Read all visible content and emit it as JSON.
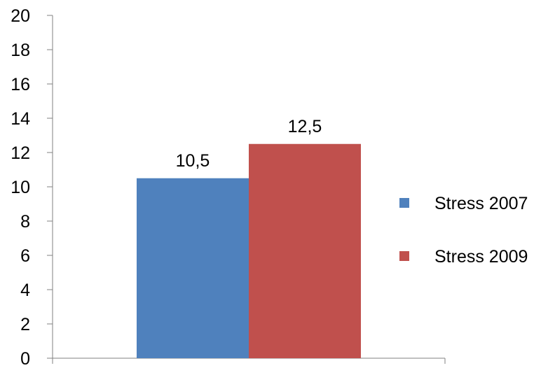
{
  "chart_data": {
    "type": "bar",
    "categories": [
      ""
    ],
    "series": [
      {
        "name": "Stress 2007",
        "values": [
          10.5
        ],
        "label": "10,5",
        "color": "#4F81BD"
      },
      {
        "name": "Stress 2009",
        "values": [
          12.5
        ],
        "label": "12,5",
        "color": "#C0504D"
      }
    ],
    "title": "",
    "xlabel": "",
    "ylabel": "",
    "ylim": [
      0,
      20
    ],
    "yticks": [
      0,
      2,
      4,
      6,
      8,
      10,
      12,
      14,
      16,
      18,
      20
    ],
    "grid": false,
    "legend": {
      "position": "right"
    }
  }
}
